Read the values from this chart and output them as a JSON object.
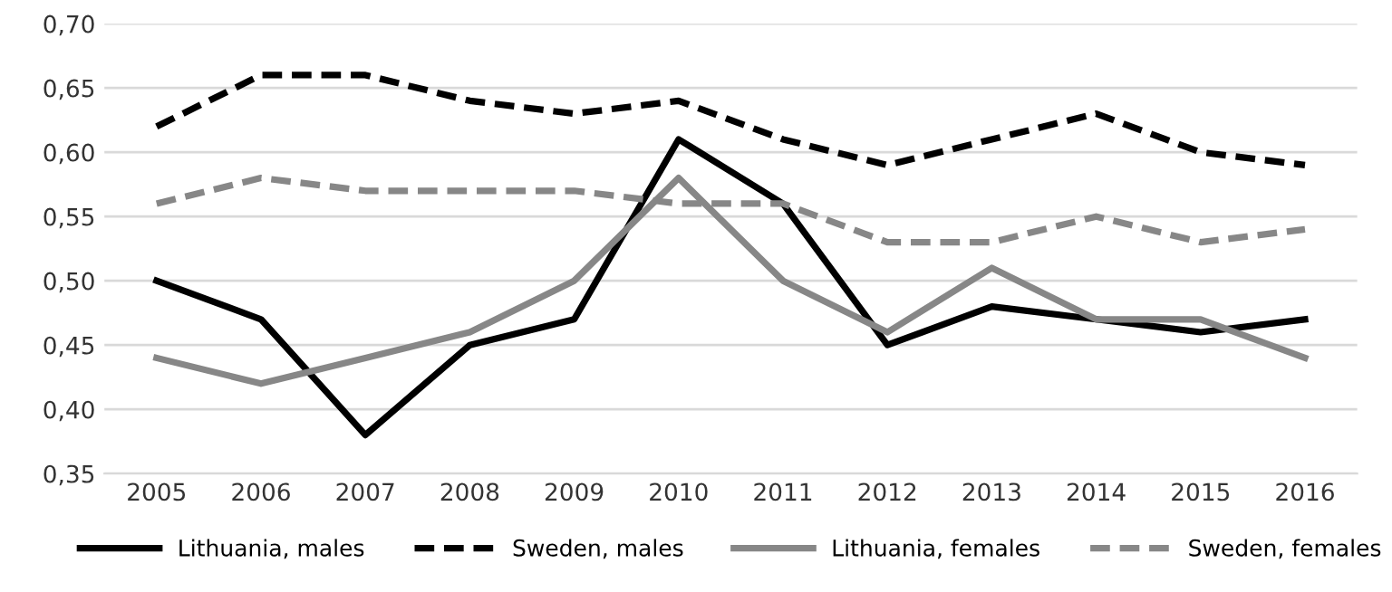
{
  "chart_data": {
    "type": "line",
    "categories": [
      "2005",
      "2006",
      "2007",
      "2008",
      "2009",
      "2010",
      "2011",
      "2012",
      "2013",
      "2014",
      "2015",
      "2016"
    ],
    "series": [
      {
        "name": "Lithuania, males",
        "color": "#000000",
        "line_style": "solid",
        "values": [
          0.5,
          0.47,
          0.38,
          0.45,
          0.47,
          0.61,
          0.56,
          0.45,
          0.48,
          0.47,
          0.46,
          0.47
        ]
      },
      {
        "name": "Sweden, males",
        "color": "#000000",
        "line_style": "dashed",
        "values": [
          0.62,
          0.66,
          0.66,
          0.64,
          0.63,
          0.64,
          0.61,
          0.59,
          0.61,
          0.63,
          0.6,
          0.59
        ]
      },
      {
        "name": "Lithuania, females",
        "color": "#878787",
        "line_style": "solid",
        "values": [
          0.44,
          0.42,
          0.44,
          0.46,
          0.5,
          0.58,
          0.5,
          0.46,
          0.51,
          0.47,
          0.47,
          0.44
        ]
      },
      {
        "name": "Sweden, females",
        "color": "#878787",
        "line_style": "dashed",
        "values": [
          0.56,
          0.58,
          0.57,
          0.57,
          0.57,
          0.56,
          0.56,
          0.53,
          0.53,
          0.55,
          0.53,
          0.54
        ]
      }
    ],
    "ylim": [
      0.35,
      0.7
    ],
    "yticks": [
      {
        "value": 0.35,
        "label": "0,35"
      },
      {
        "value": 0.4,
        "label": "0,40"
      },
      {
        "value": 0.45,
        "label": "0,45"
      },
      {
        "value": 0.5,
        "label": "0,50"
      },
      {
        "value": 0.55,
        "label": "0,55"
      },
      {
        "value": 0.6,
        "label": "0,60"
      },
      {
        "value": 0.65,
        "label": "0,65"
      },
      {
        "value": 0.7,
        "label": "0,70"
      }
    ],
    "grid": "y",
    "legend": "bottom",
    "marker": "none"
  }
}
